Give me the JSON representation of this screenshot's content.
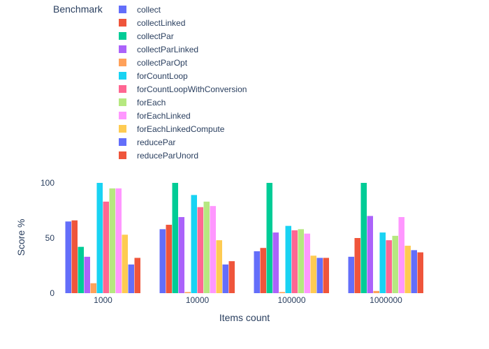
{
  "chart_data": {
    "type": "bar",
    "title": "",
    "xlabel": "Items count",
    "ylabel": "Score %",
    "legend_title": "Benchmark",
    "legend_position": "top-left",
    "categories": [
      "1000",
      "10000",
      "100000",
      "1000000"
    ],
    "ylim": [
      0,
      100
    ],
    "yticks": [
      0,
      50,
      100
    ],
    "grid": false,
    "series": [
      {
        "name": "collect",
        "color": "#636efa",
        "values": [
          65,
          58,
          38,
          33
        ]
      },
      {
        "name": "collectLinked",
        "color": "#EF553B",
        "values": [
          66,
          62,
          41,
          50
        ]
      },
      {
        "name": "collectPar",
        "color": "#00cc96",
        "values": [
          42,
          100,
          100,
          100
        ]
      },
      {
        "name": "collectParLinked",
        "color": "#ab63fa",
        "values": [
          33,
          69,
          55,
          70
        ]
      },
      {
        "name": "collectParOpt",
        "color": "#FFA15A",
        "values": [
          9,
          1,
          1,
          2
        ]
      },
      {
        "name": "forCountLoop",
        "color": "#19d3f3",
        "values": [
          100,
          89,
          61,
          55
        ]
      },
      {
        "name": "forCountLoopWithConversion",
        "color": "#FF6692",
        "values": [
          83,
          78,
          57,
          48
        ]
      },
      {
        "name": "forEach",
        "color": "#B6E880",
        "values": [
          95,
          83,
          58,
          52
        ]
      },
      {
        "name": "forEachLinked",
        "color": "#FF97FF",
        "values": [
          95,
          79,
          54,
          69
        ]
      },
      {
        "name": "forEachLinkedCompute",
        "color": "#FECB52",
        "values": [
          53,
          48,
          34,
          43
        ]
      },
      {
        "name": "reducePar",
        "color": "#636efa",
        "values": [
          26,
          26,
          32,
          39
        ]
      },
      {
        "name": "reduceParUnord",
        "color": "#EF553B",
        "values": [
          32,
          29,
          32,
          37
        ]
      }
    ]
  }
}
